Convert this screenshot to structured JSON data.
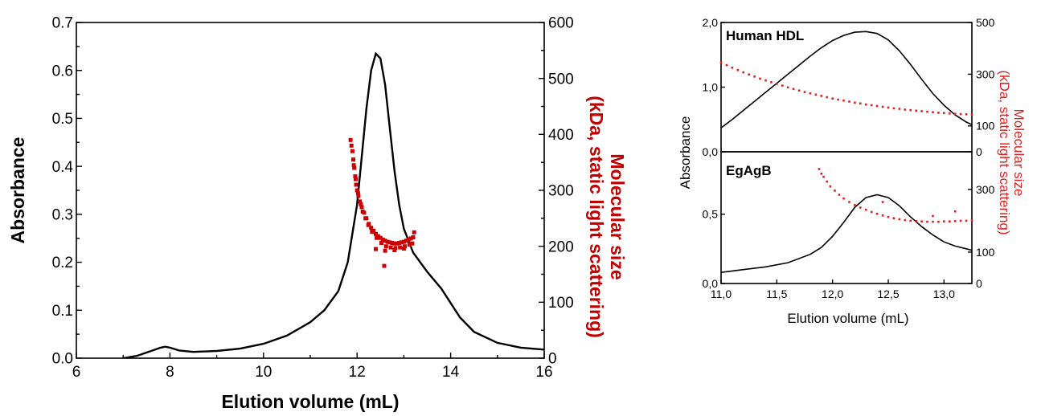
{
  "chart_data": [
    {
      "id": "main",
      "type": "line",
      "xlabel": "Elution volume (mL)",
      "ylabel": "Absorbance",
      "y2label": [
        "Molecular size",
        "(kDa, static light scattering)"
      ],
      "xlim": [
        6,
        16
      ],
      "ylim": [
        0,
        0.7
      ],
      "y2lim": [
        0,
        600
      ],
      "xticks": [
        "6",
        "8",
        "10",
        "12",
        "14",
        "16"
      ],
      "yticks": [
        "0.0",
        "0.1",
        "0.2",
        "0.3",
        "0.4",
        "0.5",
        "0.6",
        "0.7"
      ],
      "y2ticks": [
        "0",
        "100",
        "200",
        "300",
        "400",
        "500",
        "600"
      ],
      "series": [
        {
          "axis": "left",
          "style": "line",
          "color": "#000000",
          "x": [
            7.0,
            7.3,
            7.6,
            7.8,
            7.9,
            8.0,
            8.2,
            8.5,
            9.0,
            9.5,
            10.0,
            10.5,
            11.0,
            11.3,
            11.6,
            11.8,
            12.0,
            12.1,
            12.2,
            12.3,
            12.4,
            12.5,
            12.6,
            12.7,
            12.8,
            12.9,
            13.0,
            13.2,
            13.5,
            13.8,
            14.0,
            14.2,
            14.5,
            15.0,
            15.5,
            16.0
          ],
          "y": [
            0.0,
            0.005,
            0.015,
            0.022,
            0.024,
            0.022,
            0.016,
            0.013,
            0.015,
            0.02,
            0.03,
            0.047,
            0.075,
            0.1,
            0.14,
            0.2,
            0.32,
            0.42,
            0.52,
            0.6,
            0.635,
            0.625,
            0.57,
            0.48,
            0.39,
            0.32,
            0.27,
            0.22,
            0.18,
            0.145,
            0.115,
            0.085,
            0.055,
            0.032,
            0.022,
            0.018
          ]
        },
        {
          "axis": "right",
          "style": "scatter",
          "color": "#cc0000",
          "x": [
            11.86,
            11.88,
            11.9,
            11.92,
            11.94,
            11.96,
            11.98,
            12.0,
            12.03,
            12.06,
            12.1,
            12.15,
            12.2,
            12.25,
            12.3,
            12.35,
            12.4,
            12.45,
            12.5,
            12.55,
            12.6,
            12.65,
            12.7,
            12.75,
            12.8,
            12.85,
            12.9,
            12.95,
            13.0,
            13.05,
            13.1,
            13.15,
            13.2,
            11.93,
            11.97,
            12.02,
            12.08,
            12.12,
            12.18,
            12.24,
            12.32,
            12.42,
            12.52,
            12.62,
            12.72,
            12.82,
            12.92,
            13.02,
            13.12,
            13.18,
            12.58,
            13.22,
            12.4,
            12.6,
            12.8,
            13.0
          ],
          "y": [
            390,
            380,
            370,
            355,
            340,
            325,
            310,
            300,
            290,
            280,
            270,
            260,
            250,
            240,
            233,
            228,
            222,
            218,
            215,
            212,
            210,
            208,
            207,
            206,
            205,
            205,
            206,
            207,
            208,
            210,
            212,
            214,
            216,
            345,
            320,
            295,
            275,
            262,
            250,
            238,
            226,
            215,
            206,
            200,
            198,
            197,
            198,
            200,
            203,
            205,
            165,
            225,
            195,
            192,
            193,
            196
          ]
        }
      ]
    },
    {
      "id": "human-hdl",
      "type": "line",
      "title": "Human HDL",
      "xlim": [
        11,
        13.25
      ],
      "ylim": [
        0,
        2
      ],
      "y2lim": [
        0,
        500
      ],
      "yticks": [
        "0,0",
        "1,0",
        "2,0"
      ],
      "y2ticks": [
        "0",
        "100",
        "300",
        "500"
      ],
      "series": [
        {
          "axis": "left",
          "style": "line",
          "color": "#000000",
          "x": [
            11.0,
            11.1,
            11.2,
            11.3,
            11.4,
            11.5,
            11.6,
            11.7,
            11.8,
            11.9,
            12.0,
            12.1,
            12.2,
            12.3,
            12.4,
            12.5,
            12.6,
            12.7,
            12.8,
            12.9,
            13.0,
            13.1,
            13.2,
            13.25
          ],
          "y": [
            0.37,
            0.5,
            0.64,
            0.78,
            0.92,
            1.06,
            1.2,
            1.34,
            1.48,
            1.61,
            1.72,
            1.8,
            1.85,
            1.86,
            1.83,
            1.73,
            1.56,
            1.35,
            1.12,
            0.9,
            0.72,
            0.57,
            0.46,
            0.42
          ]
        },
        {
          "axis": "right",
          "style": "scatter",
          "color": "#e02020",
          "x": [
            11.0,
            11.05,
            11.1,
            11.15,
            11.2,
            11.25,
            11.3,
            11.35,
            11.4,
            11.45,
            11.5,
            11.55,
            11.6,
            11.65,
            11.7,
            11.75,
            11.8,
            11.85,
            11.9,
            11.95,
            12.0,
            12.05,
            12.1,
            12.15,
            12.2,
            12.25,
            12.3,
            12.35,
            12.4,
            12.45,
            12.5,
            12.55,
            12.6,
            12.65,
            12.7,
            12.75,
            12.8,
            12.85,
            12.9,
            12.95,
            13.0,
            13.05,
            13.1,
            13.15,
            13.2,
            13.25
          ],
          "y": [
            345,
            335,
            325,
            316,
            307,
            299,
            291,
            283,
            276,
            269,
            262,
            256,
            249,
            243,
            237,
            231,
            226,
            221,
            216,
            211,
            206,
            202,
            198,
            194,
            190,
            187,
            183,
            180,
            177,
            174,
            171,
            168,
            166,
            163,
            161,
            159,
            157,
            155,
            153,
            151,
            150,
            148,
            147,
            146,
            145,
            144
          ]
        }
      ]
    },
    {
      "id": "egagb",
      "type": "line",
      "title": "EgAgB",
      "xlabel": "Elution volume (mL)",
      "xlim": [
        11,
        13.25
      ],
      "ylim": [
        0,
        0.95
      ],
      "y2lim": [
        0,
        420
      ],
      "xticks": [
        "11,0",
        "11,5",
        "12,0",
        "12,5",
        "13,0"
      ],
      "yticks": [
        "0,0",
        "0,5"
      ],
      "y2ticks": [
        "0",
        "100",
        "300"
      ],
      "shared_ylabel": "Absorbance",
      "shared_y2label": [
        "Molecular size",
        "(kDa, static light scattering)"
      ],
      "series": [
        {
          "axis": "left",
          "style": "line",
          "color": "#000000",
          "x": [
            11.0,
            11.2,
            11.4,
            11.6,
            11.8,
            11.9,
            12.0,
            12.1,
            12.2,
            12.3,
            12.4,
            12.5,
            12.6,
            12.7,
            12.8,
            12.9,
            13.0,
            13.1,
            13.2,
            13.25
          ],
          "y": [
            0.08,
            0.1,
            0.12,
            0.15,
            0.21,
            0.26,
            0.34,
            0.44,
            0.55,
            0.62,
            0.64,
            0.62,
            0.56,
            0.48,
            0.41,
            0.35,
            0.3,
            0.27,
            0.25,
            0.24
          ]
        },
        {
          "axis": "right",
          "style": "scatter",
          "color": "#e02020",
          "x": [
            11.88,
            11.9,
            11.92,
            11.95,
            11.98,
            12.02,
            12.06,
            12.1,
            12.15,
            12.2,
            12.25,
            12.3,
            12.35,
            12.4,
            12.45,
            12.5,
            12.55,
            12.6,
            12.65,
            12.7,
            12.75,
            12.8,
            12.85,
            12.9,
            12.95,
            13.0,
            13.05,
            13.1,
            13.15,
            13.2,
            13.25,
            12.9,
            13.1,
            12.45
          ],
          "y": [
            365,
            350,
            340,
            325,
            310,
            296,
            283,
            271,
            260,
            250,
            242,
            235,
            228,
            222,
            217,
            212,
            208,
            205,
            202,
            200,
            199,
            198,
            197,
            197,
            197,
            198,
            198,
            199,
            200,
            200,
            201,
            215,
            230,
            260
          ]
        }
      ]
    }
  ]
}
